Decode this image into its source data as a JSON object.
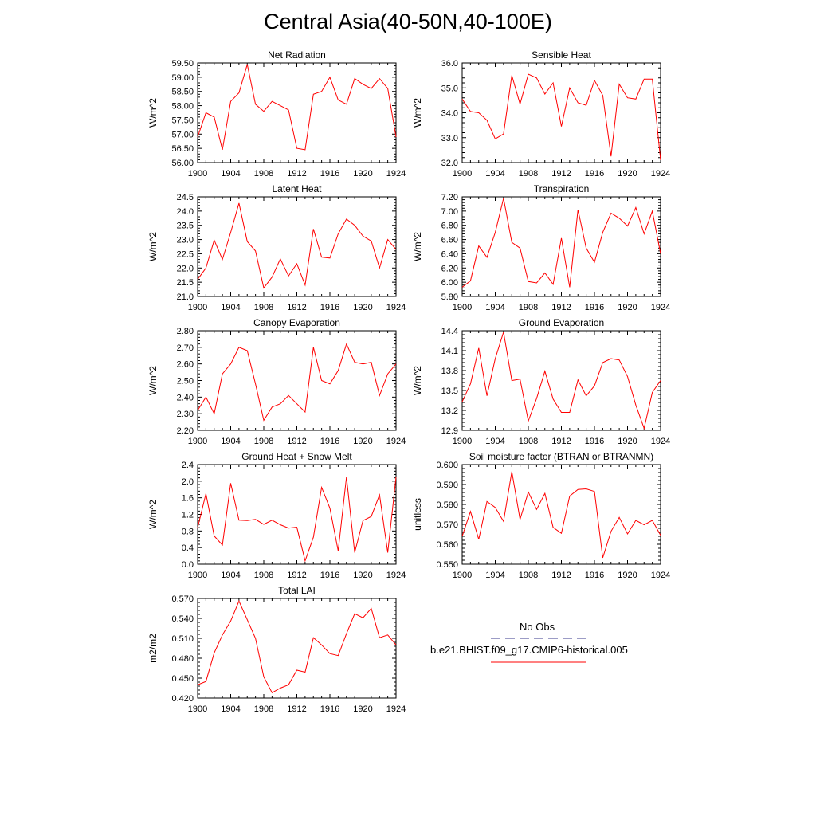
{
  "title": "Central Asia(40-50N,40-100E)",
  "colors": {
    "model": "#ff0000",
    "obs": "#3a3a8c",
    "axis": "#000000"
  },
  "legend": {
    "obs_label": "No Obs",
    "model_label": "b.e21.BHIST.f09_g17.CMIP6-historical.005"
  },
  "chart_data": [
    {
      "type": "line",
      "title": "Net Radiation",
      "xlabel": "",
      "ylabel": "W/m^2",
      "xlim": [
        1900,
        1924
      ],
      "ylim": [
        56.0,
        59.5
      ],
      "yticks": [
        "56.00",
        "56.50",
        "57.00",
        "57.50",
        "58.00",
        "58.50",
        "59.00",
        "59.50"
      ],
      "xticks": [
        "1900",
        "1904",
        "1908",
        "1912",
        "1916",
        "1920",
        "1924"
      ],
      "x": [
        1900,
        1901,
        1902,
        1903,
        1904,
        1905,
        1906,
        1907,
        1908,
        1909,
        1910,
        1911,
        1912,
        1913,
        1914,
        1915,
        1916,
        1917,
        1918,
        1919,
        1920,
        1921,
        1922,
        1923,
        1924
      ],
      "series": [
        {
          "values": [
            56.9,
            57.75,
            57.6,
            56.45,
            58.15,
            58.45,
            59.45,
            58.05,
            57.8,
            58.15,
            58.0,
            57.85,
            56.5,
            56.45,
            58.4,
            58.5,
            59.0,
            58.2,
            58.05,
            58.95,
            58.75,
            58.6,
            58.95,
            58.6,
            56.9
          ]
        }
      ]
    },
    {
      "type": "line",
      "title": "Sensible Heat",
      "xlabel": "",
      "ylabel": "W/m^2",
      "xlim": [
        1900,
        1924
      ],
      "ylim": [
        32.0,
        36.0
      ],
      "yticks": [
        "32.0",
        "33.0",
        "34.0",
        "35.0",
        "36.0"
      ],
      "xticks": [
        "1900",
        "1904",
        "1908",
        "1912",
        "1916",
        "1920",
        "1924"
      ],
      "x": [
        1900,
        1901,
        1902,
        1903,
        1904,
        1905,
        1906,
        1907,
        1908,
        1909,
        1910,
        1911,
        1912,
        1913,
        1914,
        1915,
        1916,
        1917,
        1918,
        1919,
        1920,
        1921,
        1922,
        1923,
        1924
      ],
      "series": [
        {
          "values": [
            34.55,
            34.05,
            34.0,
            33.7,
            32.95,
            33.15,
            35.5,
            34.35,
            35.55,
            35.4,
            34.75,
            35.2,
            33.45,
            35.0,
            34.4,
            34.3,
            35.3,
            34.7,
            32.25,
            35.15,
            34.6,
            34.55,
            35.35,
            35.35,
            32.1
          ]
        }
      ]
    },
    {
      "type": "line",
      "title": "Latent Heat",
      "xlabel": "",
      "ylabel": "W/m^2",
      "xlim": [
        1900,
        1924
      ],
      "ylim": [
        21.0,
        24.5
      ],
      "yticks": [
        "21.0",
        "21.5",
        "22.0",
        "22.5",
        "23.0",
        "23.5",
        "24.0",
        "24.5"
      ],
      "xticks": [
        "1900",
        "1904",
        "1908",
        "1912",
        "1916",
        "1920",
        "1924"
      ],
      "x": [
        1900,
        1901,
        1902,
        1903,
        1904,
        1905,
        1906,
        1907,
        1908,
        1909,
        1910,
        1911,
        1912,
        1913,
        1914,
        1915,
        1916,
        1917,
        1918,
        1919,
        1920,
        1921,
        1922,
        1923,
        1924
      ],
      "series": [
        {
          "values": [
            21.6,
            22.0,
            22.98,
            22.3,
            23.25,
            24.28,
            22.93,
            22.6,
            21.3,
            21.68,
            22.32,
            21.72,
            22.15,
            21.4,
            23.37,
            22.38,
            22.35,
            23.2,
            23.72,
            23.5,
            23.12,
            22.95,
            22.0,
            23.0,
            22.65
          ]
        }
      ]
    },
    {
      "type": "line",
      "title": "Transpiration",
      "xlabel": "",
      "ylabel": "W/m^2",
      "xlim": [
        1900,
        1924
      ],
      "ylim": [
        5.8,
        7.2
      ],
      "yticks": [
        "5.80",
        "6.00",
        "6.20",
        "6.40",
        "6.60",
        "6.80",
        "7.00",
        "7.20"
      ],
      "xticks": [
        "1900",
        "1904",
        "1908",
        "1912",
        "1916",
        "1920",
        "1924"
      ],
      "x": [
        1900,
        1901,
        1902,
        1903,
        1904,
        1905,
        1906,
        1907,
        1908,
        1909,
        1910,
        1911,
        1912,
        1913,
        1914,
        1915,
        1916,
        1917,
        1918,
        1919,
        1920,
        1921,
        1922,
        1923,
        1924
      ],
      "series": [
        {
          "values": [
            5.93,
            6.02,
            6.51,
            6.35,
            6.7,
            7.18,
            6.56,
            6.48,
            6.01,
            5.99,
            6.13,
            5.97,
            6.62,
            5.93,
            7.02,
            6.48,
            6.28,
            6.7,
            6.97,
            6.9,
            6.79,
            7.05,
            6.68,
            7.0,
            6.4
          ]
        }
      ]
    },
    {
      "type": "line",
      "title": "Canopy Evaporation",
      "xlabel": "",
      "ylabel": "W/m^2",
      "xlim": [
        1900,
        1924
      ],
      "ylim": [
        2.2,
        2.8
      ],
      "yticks": [
        "2.20",
        "2.30",
        "2.40",
        "2.50",
        "2.60",
        "2.70",
        "2.80"
      ],
      "xticks": [
        "1900",
        "1904",
        "1908",
        "1912",
        "1916",
        "1920",
        "1924"
      ],
      "x": [
        1900,
        1901,
        1902,
        1903,
        1904,
        1905,
        1906,
        1907,
        1908,
        1909,
        1910,
        1911,
        1912,
        1913,
        1914,
        1915,
        1916,
        1917,
        1918,
        1919,
        1920,
        1921,
        1922,
        1923,
        1924
      ],
      "series": [
        {
          "values": [
            2.32,
            2.4,
            2.3,
            2.54,
            2.6,
            2.7,
            2.68,
            2.48,
            2.26,
            2.34,
            2.36,
            2.41,
            2.36,
            2.31,
            2.7,
            2.5,
            2.48,
            2.56,
            2.72,
            2.61,
            2.6,
            2.61,
            2.41,
            2.54,
            2.6
          ]
        }
      ]
    },
    {
      "type": "line",
      "title": "Ground Evaporation",
      "xlabel": "",
      "ylabel": "W/m^2",
      "xlim": [
        1900,
        1924
      ],
      "ylim": [
        12.9,
        14.4
      ],
      "yticks": [
        "12.9",
        "13.2",
        "13.5",
        "13.8",
        "14.1",
        "14.4"
      ],
      "xticks": [
        "1900",
        "1904",
        "1908",
        "1912",
        "1916",
        "1920",
        "1924"
      ],
      "x": [
        1900,
        1901,
        1902,
        1903,
        1904,
        1905,
        1906,
        1907,
        1908,
        1909,
        1910,
        1911,
        1912,
        1913,
        1914,
        1915,
        1916,
        1917,
        1918,
        1919,
        1920,
        1921,
        1922,
        1923,
        1924
      ],
      "series": [
        {
          "values": [
            13.33,
            13.6,
            14.14,
            13.42,
            13.98,
            14.38,
            13.65,
            13.67,
            13.04,
            13.38,
            13.79,
            13.37,
            13.17,
            13.17,
            13.66,
            13.42,
            13.57,
            13.92,
            13.98,
            13.96,
            13.71,
            13.28,
            12.93,
            13.47,
            13.65
          ]
        }
      ]
    },
    {
      "type": "line",
      "title": "Ground Heat + Snow Melt",
      "xlabel": "",
      "ylabel": "W/m^2",
      "xlim": [
        1900,
        1924
      ],
      "ylim": [
        0.0,
        2.4
      ],
      "yticks": [
        "0.0",
        "0.4",
        "0.8",
        "1.2",
        "1.6",
        "2.0",
        "2.4"
      ],
      "xticks": [
        "1900",
        "1904",
        "1908",
        "1912",
        "1916",
        "1920",
        "1924"
      ],
      "x": [
        1900,
        1901,
        1902,
        1903,
        1904,
        1905,
        1906,
        1907,
        1908,
        1909,
        1910,
        1911,
        1912,
        1913,
        1914,
        1915,
        1916,
        1917,
        1918,
        1919,
        1920,
        1921,
        1922,
        1923,
        1924
      ],
      "series": [
        {
          "values": [
            0.88,
            1.7,
            0.68,
            0.46,
            1.95,
            1.06,
            1.05,
            1.08,
            0.96,
            1.06,
            0.95,
            0.87,
            0.89,
            0.08,
            0.65,
            1.85,
            1.35,
            0.32,
            2.1,
            0.28,
            1.05,
            1.15,
            1.67,
            0.28,
            2.1
          ]
        }
      ]
    },
    {
      "type": "line",
      "title": "Soil moisture factor (BTRAN or BTRANMN)",
      "xlabel": "",
      "ylabel": "unitless",
      "xlim": [
        1900,
        1924
      ],
      "ylim": [
        0.55,
        0.6
      ],
      "yticks": [
        "0.550",
        "0.560",
        "0.570",
        "0.580",
        "0.590",
        "0.600"
      ],
      "xticks": [
        "1900",
        "1904",
        "1908",
        "1912",
        "1916",
        "1920",
        "1924"
      ],
      "x": [
        1900,
        1901,
        1902,
        1903,
        1904,
        1905,
        1906,
        1907,
        1908,
        1909,
        1910,
        1911,
        1912,
        1913,
        1914,
        1915,
        1916,
        1917,
        1918,
        1919,
        1920,
        1921,
        1922,
        1923,
        1924
      ],
      "series": [
        {
          "values": [
            0.564,
            0.5765,
            0.5625,
            0.5815,
            0.5785,
            0.5715,
            0.5965,
            0.5725,
            0.5862,
            0.5775,
            0.5855,
            0.5685,
            0.5655,
            0.5842,
            0.5875,
            0.5878,
            0.5865,
            0.5532,
            0.5665,
            0.5735,
            0.5652,
            0.572,
            0.5698,
            0.572,
            0.5645
          ]
        }
      ]
    },
    {
      "type": "line",
      "title": "Total LAI",
      "xlabel": "",
      "ylabel": "m2/m2",
      "xlim": [
        1900,
        1924
      ],
      "ylim": [
        0.42,
        0.57
      ],
      "yticks": [
        "0.420",
        "0.450",
        "0.480",
        "0.510",
        "0.540",
        "0.570"
      ],
      "xticks": [
        "1900",
        "1904",
        "1908",
        "1912",
        "1916",
        "1920",
        "1924"
      ],
      "x": [
        1900,
        1901,
        1902,
        1903,
        1904,
        1905,
        1906,
        1907,
        1908,
        1909,
        1910,
        1911,
        1912,
        1913,
        1914,
        1915,
        1916,
        1917,
        1918,
        1919,
        1920,
        1921,
        1922,
        1923,
        1924
      ],
      "series": [
        {
          "values": [
            0.44,
            0.445,
            0.488,
            0.515,
            0.536,
            0.566,
            0.538,
            0.51,
            0.452,
            0.428,
            0.435,
            0.44,
            0.462,
            0.459,
            0.511,
            0.5,
            0.487,
            0.484,
            0.517,
            0.547,
            0.541,
            0.555,
            0.511,
            0.515,
            0.5
          ]
        }
      ]
    }
  ]
}
